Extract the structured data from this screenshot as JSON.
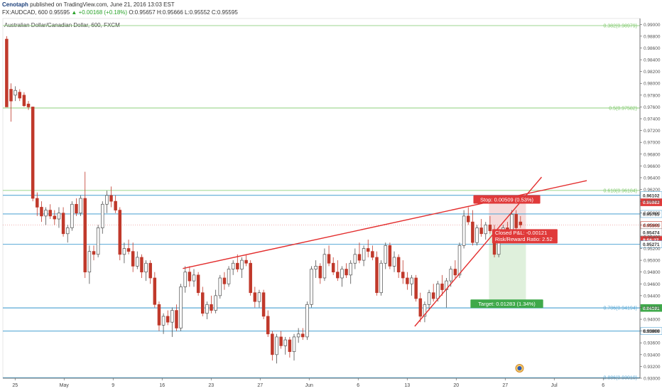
{
  "header": {
    "author": "Cenotaph",
    "published": "published on TradingView.com, June 21, 2016 13:03 EST",
    "symbol": "FX:AUDCAD, 600",
    "last": "0.95595",
    "change": "+0.00168 (+0.18%)",
    "ohlc": "O:0.95657 H:0.95666 L:0.95552 C:0.95595"
  },
  "colors": {
    "up": "#4f4f4f",
    "down": "#c0392b",
    "fib": "#7ec86a",
    "level": "#5aa9d6",
    "trend": "#e32d2d",
    "stop_label": "#e03a3a",
    "target_label": "#3fa94a",
    "target_zone": "#dff0dc",
    "stop_zone": "#f6dada"
  },
  "chart_data": {
    "type": "candlestick",
    "title": "Australian Dollar/Canadian Dollar, 600, FXCM",
    "ylim": [
      0.93,
      0.991
    ],
    "y_ticks": [
      "0.99000",
      "0.98800",
      "0.98600",
      "0.98400",
      "0.98200",
      "0.98000",
      "0.97800",
      "0.97600",
      "0.97400",
      "0.97200",
      "0.97000",
      "0.96800",
      "0.96600",
      "0.96400",
      "0.96200",
      "0.96000",
      "0.95800",
      "0.95600",
      "0.95400",
      "0.95200",
      "0.95000",
      "0.94800",
      "0.94600",
      "0.94400",
      "0.94200",
      "0.94000",
      "0.93800",
      "0.93600",
      "0.93400",
      "0.93200",
      "0.93000"
    ],
    "x_ticks": [
      "25",
      "May",
      "9",
      "16",
      "23",
      "27",
      "Jun",
      "6",
      "13",
      "20",
      "27",
      "Jul",
      "6"
    ],
    "fib_levels": [
      {
        "label": "0.382(0.98979)",
        "value": 0.98979
      },
      {
        "label": "0.5(0.97582)",
        "value": 0.97582
      },
      {
        "label": "0.618(0.96184)",
        "value": 0.96184
      },
      {
        "label": "0.786(0.94194)",
        "value": 0.94194
      },
      {
        "label": "0.886(0.93010)",
        "value": 0.9301
      }
    ],
    "levels": [
      0.96102,
      0.95785,
      0.95271,
      0.94191,
      0.938
    ],
    "price_labels": [
      {
        "text": "0.96102",
        "value": 0.96102,
        "style": "level"
      },
      {
        "text": "0.95983",
        "value": 0.95983,
        "style": "stop"
      },
      {
        "text": "0.95785",
        "value": 0.95785,
        "style": "level"
      },
      {
        "text": "0.95595",
        "value": 0.95595,
        "style": "last"
      },
      {
        "text": "0.95474",
        "value": 0.95474,
        "style": "entry"
      },
      {
        "text": "8:56:27",
        "value": 0.95345,
        "style": "timer"
      },
      {
        "text": "0.95271",
        "value": 0.95271,
        "style": "level"
      },
      {
        "text": "0.94191",
        "value": 0.94191,
        "style": "target"
      },
      {
        "text": "0.93800",
        "value": 0.938,
        "style": "level"
      }
    ],
    "position": {
      "stop_text": "Stop: 0.00509 (0.53%)",
      "target_text": "Target: 0.01283 (1.34%)",
      "pnl_text": "Closed P&L: -0.00121",
      "rr_text": "Risk/Reward Ratio: 2.52",
      "entry": 0.95474,
      "stop": 0.95983,
      "target": 0.94191
    },
    "trendlines": [
      {
        "x1": 0.2825,
        "y1": 0.9486,
        "x2": 0.9165,
        "y2": 0.9635
      },
      {
        "x1": 0.6465,
        "y1": 0.9388,
        "x2": 0.8456,
        "y2": 0.9641
      }
    ],
    "candles": [
      {
        "o": 0.9875,
        "h": 0.988,
        "l": 0.976,
        "c": 0.976
      },
      {
        "o": 0.979,
        "h": 0.98,
        "l": 0.9735,
        "c": 0.977
      },
      {
        "o": 0.978,
        "h": 0.9795,
        "l": 0.977,
        "c": 0.9788
      },
      {
        "o": 0.9785,
        "h": 0.979,
        "l": 0.977,
        "c": 0.9775
      },
      {
        "o": 0.978,
        "h": 0.9785,
        "l": 0.976,
        "c": 0.9762
      },
      {
        "o": 0.9765,
        "h": 0.977,
        "l": 0.9755,
        "c": 0.976
      },
      {
        "o": 0.976,
        "h": 0.976,
        "l": 0.96,
        "c": 0.9605
      },
      {
        "o": 0.9605,
        "h": 0.9615,
        "l": 0.9575,
        "c": 0.959
      },
      {
        "o": 0.959,
        "h": 0.96,
        "l": 0.9565,
        "c": 0.9575
      },
      {
        "o": 0.9575,
        "h": 0.959,
        "l": 0.956,
        "c": 0.9585
      },
      {
        "o": 0.9585,
        "h": 0.9595,
        "l": 0.957,
        "c": 0.9575
      },
      {
        "o": 0.9575,
        "h": 0.9585,
        "l": 0.956,
        "c": 0.957
      },
      {
        "o": 0.957,
        "h": 0.959,
        "l": 0.9555,
        "c": 0.958
      },
      {
        "o": 0.958,
        "h": 0.959,
        "l": 0.954,
        "c": 0.9545
      },
      {
        "o": 0.9545,
        "h": 0.956,
        "l": 0.953,
        "c": 0.9555
      },
      {
        "o": 0.9555,
        "h": 0.96,
        "l": 0.955,
        "c": 0.9595
      },
      {
        "o": 0.9595,
        "h": 0.9605,
        "l": 0.9575,
        "c": 0.958
      },
      {
        "o": 0.958,
        "h": 0.961,
        "l": 0.9575,
        "c": 0.9605
      },
      {
        "o": 0.9605,
        "h": 0.965,
        "l": 0.947,
        "c": 0.948
      },
      {
        "o": 0.948,
        "h": 0.9525,
        "l": 0.946,
        "c": 0.9515
      },
      {
        "o": 0.9515,
        "h": 0.9525,
        "l": 0.95,
        "c": 0.951
      },
      {
        "o": 0.951,
        "h": 0.956,
        "l": 0.9505,
        "c": 0.9555
      },
      {
        "o": 0.9555,
        "h": 0.96,
        "l": 0.9545,
        "c": 0.9595
      },
      {
        "o": 0.9595,
        "h": 0.9618,
        "l": 0.958,
        "c": 0.961
      },
      {
        "o": 0.961,
        "h": 0.9625,
        "l": 0.959,
        "c": 0.96
      },
      {
        "o": 0.96,
        "h": 0.961,
        "l": 0.958,
        "c": 0.9585
      },
      {
        "o": 0.9585,
        "h": 0.959,
        "l": 0.95,
        "c": 0.951
      },
      {
        "o": 0.951,
        "h": 0.953,
        "l": 0.9495,
        "c": 0.952
      },
      {
        "o": 0.952,
        "h": 0.9535,
        "l": 0.951,
        "c": 0.9515
      },
      {
        "o": 0.9515,
        "h": 0.953,
        "l": 0.948,
        "c": 0.949
      },
      {
        "o": 0.949,
        "h": 0.9515,
        "l": 0.9485,
        "c": 0.9505
      },
      {
        "o": 0.9505,
        "h": 0.951,
        "l": 0.947,
        "c": 0.948
      },
      {
        "o": 0.948,
        "h": 0.95,
        "l": 0.9465,
        "c": 0.9495
      },
      {
        "o": 0.9495,
        "h": 0.95,
        "l": 0.946,
        "c": 0.947
      },
      {
        "o": 0.947,
        "h": 0.948,
        "l": 0.942,
        "c": 0.9425
      },
      {
        "o": 0.9425,
        "h": 0.943,
        "l": 0.938,
        "c": 0.939
      },
      {
        "o": 0.939,
        "h": 0.941,
        "l": 0.9375,
        "c": 0.9405
      },
      {
        "o": 0.9405,
        "h": 0.9415,
        "l": 0.939,
        "c": 0.9395
      },
      {
        "o": 0.9395,
        "h": 0.942,
        "l": 0.937,
        "c": 0.9415
      },
      {
        "o": 0.9415,
        "h": 0.9425,
        "l": 0.938,
        "c": 0.9385
      },
      {
        "o": 0.9385,
        "h": 0.946,
        "l": 0.938,
        "c": 0.9455
      },
      {
        "o": 0.9455,
        "h": 0.949,
        "l": 0.9445,
        "c": 0.948
      },
      {
        "o": 0.948,
        "h": 0.949,
        "l": 0.9455,
        "c": 0.9465
      },
      {
        "o": 0.9465,
        "h": 0.9485,
        "l": 0.9455,
        "c": 0.9475
      },
      {
        "o": 0.9475,
        "h": 0.948,
        "l": 0.944,
        "c": 0.9445
      },
      {
        "o": 0.9445,
        "h": 0.9455,
        "l": 0.9405,
        "c": 0.941
      },
      {
        "o": 0.941,
        "h": 0.943,
        "l": 0.94,
        "c": 0.9425
      },
      {
        "o": 0.9425,
        "h": 0.944,
        "l": 0.941,
        "c": 0.9415
      },
      {
        "o": 0.9415,
        "h": 0.945,
        "l": 0.941,
        "c": 0.944
      },
      {
        "o": 0.944,
        "h": 0.9475,
        "l": 0.9435,
        "c": 0.947
      },
      {
        "o": 0.947,
        "h": 0.948,
        "l": 0.945,
        "c": 0.946
      },
      {
        "o": 0.946,
        "h": 0.949,
        "l": 0.9455,
        "c": 0.9485
      },
      {
        "o": 0.9485,
        "h": 0.95,
        "l": 0.9475,
        "c": 0.9495
      },
      {
        "o": 0.9495,
        "h": 0.951,
        "l": 0.948,
        "c": 0.9485
      },
      {
        "o": 0.9485,
        "h": 0.9505,
        "l": 0.947,
        "c": 0.95
      },
      {
        "o": 0.95,
        "h": 0.951,
        "l": 0.949,
        "c": 0.9495
      },
      {
        "o": 0.9495,
        "h": 0.95,
        "l": 0.944,
        "c": 0.9445
      },
      {
        "o": 0.9445,
        "h": 0.9455,
        "l": 0.942,
        "c": 0.943
      },
      {
        "o": 0.943,
        "h": 0.945,
        "l": 0.942,
        "c": 0.9445
      },
      {
        "o": 0.9445,
        "h": 0.945,
        "l": 0.94,
        "c": 0.9405
      },
      {
        "o": 0.9405,
        "h": 0.9415,
        "l": 0.937,
        "c": 0.9375
      },
      {
        "o": 0.9375,
        "h": 0.938,
        "l": 0.933,
        "c": 0.934
      },
      {
        "o": 0.934,
        "h": 0.9375,
        "l": 0.9325,
        "c": 0.937
      },
      {
        "o": 0.937,
        "h": 0.938,
        "l": 0.935,
        "c": 0.9355
      },
      {
        "o": 0.9355,
        "h": 0.937,
        "l": 0.934,
        "c": 0.9365
      },
      {
        "o": 0.9365,
        "h": 0.937,
        "l": 0.9335,
        "c": 0.9345
      },
      {
        "o": 0.9345,
        "h": 0.9375,
        "l": 0.933,
        "c": 0.937
      },
      {
        "o": 0.937,
        "h": 0.9385,
        "l": 0.936,
        "c": 0.9375
      },
      {
        "o": 0.9375,
        "h": 0.9385,
        "l": 0.9365,
        "c": 0.937
      },
      {
        "o": 0.937,
        "h": 0.943,
        "l": 0.9365,
        "c": 0.9425
      },
      {
        "o": 0.9425,
        "h": 0.949,
        "l": 0.942,
        "c": 0.9485
      },
      {
        "o": 0.9485,
        "h": 0.95,
        "l": 0.947,
        "c": 0.949
      },
      {
        "o": 0.949,
        "h": 0.9495,
        "l": 0.946,
        "c": 0.947
      },
      {
        "o": 0.947,
        "h": 0.952,
        "l": 0.9465,
        "c": 0.951
      },
      {
        "o": 0.951,
        "h": 0.9525,
        "l": 0.949,
        "c": 0.9495
      },
      {
        "o": 0.9495,
        "h": 0.9505,
        "l": 0.9475,
        "c": 0.948
      },
      {
        "o": 0.948,
        "h": 0.95,
        "l": 0.9465,
        "c": 0.947
      },
      {
        "o": 0.947,
        "h": 0.949,
        "l": 0.9455,
        "c": 0.9485
      },
      {
        "o": 0.9485,
        "h": 0.9495,
        "l": 0.947,
        "c": 0.9475
      },
      {
        "o": 0.9475,
        "h": 0.95,
        "l": 0.946,
        "c": 0.9495
      },
      {
        "o": 0.9495,
        "h": 0.952,
        "l": 0.9485,
        "c": 0.951
      },
      {
        "o": 0.951,
        "h": 0.953,
        "l": 0.9495,
        "c": 0.95
      },
      {
        "o": 0.95,
        "h": 0.9525,
        "l": 0.949,
        "c": 0.952
      },
      {
        "o": 0.952,
        "h": 0.9535,
        "l": 0.9505,
        "c": 0.9515
      },
      {
        "o": 0.9515,
        "h": 0.9525,
        "l": 0.95,
        "c": 0.9505
      },
      {
        "o": 0.9505,
        "h": 0.9515,
        "l": 0.944,
        "c": 0.9445
      },
      {
        "o": 0.9445,
        "h": 0.95,
        "l": 0.944,
        "c": 0.9495
      },
      {
        "o": 0.9495,
        "h": 0.953,
        "l": 0.9485,
        "c": 0.9525
      },
      {
        "o": 0.9525,
        "h": 0.953,
        "l": 0.9485,
        "c": 0.949
      },
      {
        "o": 0.949,
        "h": 0.9515,
        "l": 0.948,
        "c": 0.9505
      },
      {
        "o": 0.9505,
        "h": 0.951,
        "l": 0.947,
        "c": 0.948
      },
      {
        "o": 0.948,
        "h": 0.95,
        "l": 0.946,
        "c": 0.947
      },
      {
        "o": 0.947,
        "h": 0.948,
        "l": 0.945,
        "c": 0.946
      },
      {
        "o": 0.946,
        "h": 0.9475,
        "l": 0.944,
        "c": 0.947
      },
      {
        "o": 0.947,
        "h": 0.9475,
        "l": 0.943,
        "c": 0.9435
      },
      {
        "o": 0.9435,
        "h": 0.9445,
        "l": 0.9395,
        "c": 0.9405
      },
      {
        "o": 0.9405,
        "h": 0.943,
        "l": 0.9395,
        "c": 0.9425
      },
      {
        "o": 0.9425,
        "h": 0.945,
        "l": 0.9415,
        "c": 0.9445
      },
      {
        "o": 0.9445,
        "h": 0.946,
        "l": 0.943,
        "c": 0.9435
      },
      {
        "o": 0.9435,
        "h": 0.9465,
        "l": 0.943,
        "c": 0.946
      },
      {
        "o": 0.946,
        "h": 0.9475,
        "l": 0.944,
        "c": 0.945
      },
      {
        "o": 0.945,
        "h": 0.947,
        "l": 0.942,
        "c": 0.9465
      },
      {
        "o": 0.9465,
        "h": 0.949,
        "l": 0.9455,
        "c": 0.9485
      },
      {
        "o": 0.9485,
        "h": 0.95,
        "l": 0.947,
        "c": 0.9475
      },
      {
        "o": 0.9475,
        "h": 0.953,
        "l": 0.947,
        "c": 0.9525
      },
      {
        "o": 0.9525,
        "h": 0.9585,
        "l": 0.952,
        "c": 0.9575
      },
      {
        "o": 0.9575,
        "h": 0.959,
        "l": 0.956,
        "c": 0.9565
      },
      {
        "o": 0.9565,
        "h": 0.9585,
        "l": 0.9525,
        "c": 0.953
      },
      {
        "o": 0.953,
        "h": 0.956,
        "l": 0.9525,
        "c": 0.9555
      },
      {
        "o": 0.9555,
        "h": 0.957,
        "l": 0.954,
        "c": 0.9545
      },
      {
        "o": 0.9545,
        "h": 0.9565,
        "l": 0.9535,
        "c": 0.956
      },
      {
        "o": 0.956,
        "h": 0.9575,
        "l": 0.9545,
        "c": 0.955
      },
      {
        "o": 0.955,
        "h": 0.956,
        "l": 0.9505,
        "c": 0.951
      },
      {
        "o": 0.951,
        "h": 0.9545,
        "l": 0.9505,
        "c": 0.954
      },
      {
        "o": 0.954,
        "h": 0.956,
        "l": 0.953,
        "c": 0.9555
      },
      {
        "o": 0.9555,
        "h": 0.9565,
        "l": 0.954,
        "c": 0.9545
      },
      {
        "o": 0.9545,
        "h": 0.9585,
        "l": 0.954,
        "c": 0.9578
      },
      {
        "o": 0.9578,
        "h": 0.9585,
        "l": 0.9545,
        "c": 0.9555
      },
      {
        "o": 0.9565,
        "h": 0.9575,
        "l": 0.9555,
        "c": 0.956
      }
    ]
  }
}
